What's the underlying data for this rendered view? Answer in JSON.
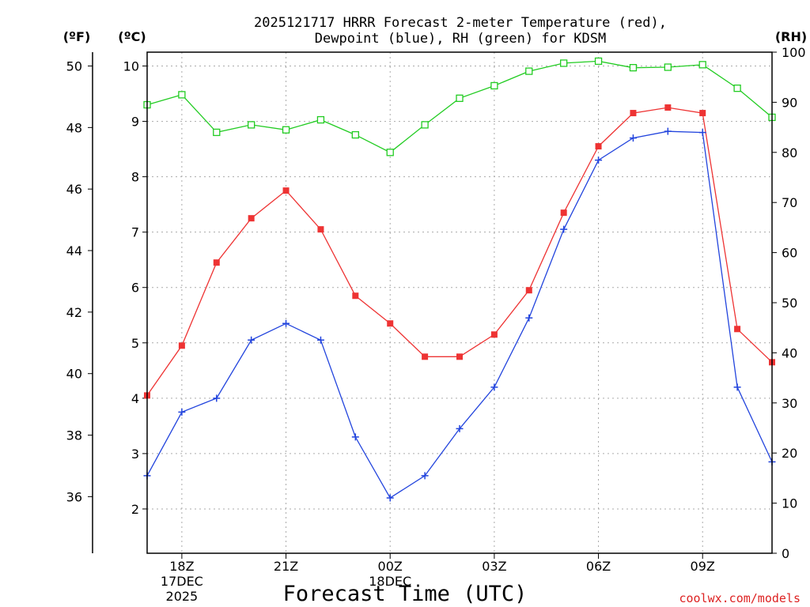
{
  "chart_data": {
    "type": "line",
    "title_line1": "2025121717 HRRR Forecast 2-meter Temperature (red),",
    "title_line2": "Dewpoint (blue), RH (green) for KDSM",
    "xlabel": "Forecast Time (UTC)",
    "credit": "coolwx.com/models",
    "unit_f": "(ºF)",
    "unit_c": "(ºC)",
    "unit_rh": "(RH)",
    "x_hours": [
      0,
      1,
      2,
      3,
      4,
      5,
      6,
      7,
      8,
      9,
      10,
      11,
      12,
      13,
      14,
      15,
      16,
      17,
      18
    ],
    "x_tick_labels": [
      {
        "hour": 1,
        "lines": [
          "18Z",
          "17DEC",
          "2025"
        ]
      },
      {
        "hour": 4,
        "lines": [
          "21Z"
        ]
      },
      {
        "hour": 7,
        "lines": [
          "00Z",
          "18DEC"
        ]
      },
      {
        "hour": 10,
        "lines": [
          "03Z"
        ]
      },
      {
        "hour": 13,
        "lines": [
          "06Z"
        ]
      },
      {
        "hour": 16,
        "lines": [
          "09Z"
        ]
      }
    ],
    "ylim_c": [
      1.2,
      10.25
    ],
    "ylim_rh": [
      0,
      100
    ],
    "f_ticks": [
      36,
      38,
      40,
      42,
      44,
      46,
      48,
      50
    ],
    "c_ticks": [
      2,
      3,
      4,
      5,
      6,
      7,
      8,
      9,
      10
    ],
    "rh_ticks": [
      0,
      10,
      20,
      30,
      40,
      50,
      60,
      70,
      80,
      90,
      100
    ],
    "series": [
      {
        "name": "Temperature",
        "units": "C",
        "color": "#ee3333",
        "marker": "filled-square",
        "values": [
          4.05,
          4.95,
          6.45,
          7.25,
          7.75,
          7.05,
          5.85,
          5.35,
          4.75,
          4.75,
          5.15,
          5.95,
          7.35,
          8.55,
          9.15,
          9.25,
          9.15,
          5.25,
          4.65
        ]
      },
      {
        "name": "Dewpoint",
        "units": "C",
        "color": "#2244dd",
        "marker": "plus",
        "values": [
          2.6,
          3.75,
          4.0,
          5.05,
          5.35,
          5.05,
          3.3,
          2.2,
          2.6,
          3.45,
          4.2,
          5.45,
          7.05,
          8.3,
          8.7,
          8.82,
          8.8,
          4.2,
          2.85
        ]
      },
      {
        "name": "RH",
        "units": "%",
        "color": "#22cc22",
        "marker": "open-square",
        "values": [
          89.5,
          91.5,
          84.0,
          85.5,
          84.5,
          86.5,
          83.5,
          80.0,
          85.5,
          90.8,
          93.3,
          96.2,
          97.8,
          98.2,
          96.9,
          97.0,
          97.5,
          92.8,
          87.0
        ]
      }
    ]
  }
}
